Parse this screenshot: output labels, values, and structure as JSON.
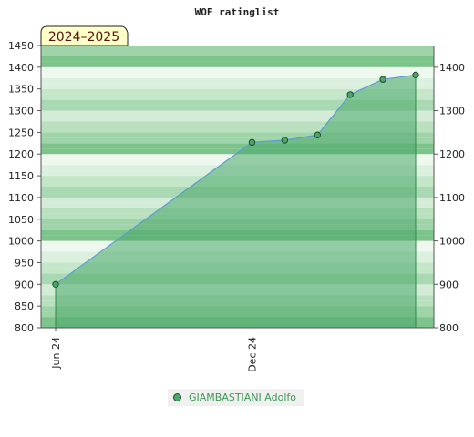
{
  "chart_data": {
    "type": "area",
    "title": "WOF ratinglist",
    "badge": "2024–2025",
    "x_tick_labels": [
      {
        "label": "Jun 24",
        "month_index": 0
      },
      {
        "label": "Dec 24",
        "month_index": 6
      }
    ],
    "ylim": [
      800,
      1450
    ],
    "y_ticks_left": [
      800,
      850,
      900,
      950,
      1000,
      1050,
      1100,
      1150,
      1200,
      1250,
      1300,
      1350,
      1400,
      1450
    ],
    "y_ticks_right": [
      800,
      900,
      1000,
      1100,
      1200,
      1300,
      1400
    ],
    "series": [
      {
        "name": "GIAMBASTIANI Adolfo",
        "x": [
          0,
          6,
          7,
          8,
          9,
          10,
          11
        ],
        "values": [
          900,
          1227,
          1232,
          1244,
          1337,
          1372,
          1382
        ]
      }
    ],
    "colors": {
      "area_fill": "#4aa86a",
      "line": "#5b9bd5",
      "marker": "#4aa86a",
      "marker_edge": "#1f4a2a",
      "badge_bg": "#ffffc8",
      "band_dark": "#9fd3a8",
      "band_light": "#eef8ef"
    }
  },
  "legend": {
    "label": "GIAMBASTIANI Adolfo"
  }
}
